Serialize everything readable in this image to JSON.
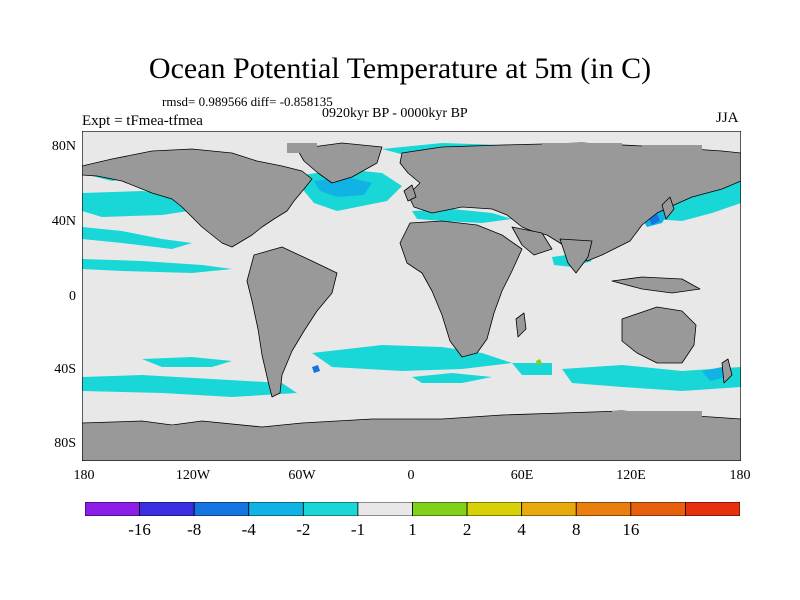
{
  "title": "Ocean Potential Temperature at 5m (in C)",
  "stats_line": "rmsd= 0.989566 diff= -0.858135",
  "period": "0920kyr BP - 0000kyr BP",
  "experiment": "Expt = tFmea-tfmea",
  "season": "JJA",
  "lat_labels": [
    "80N",
    "40N",
    "0",
    "40S",
    "80S"
  ],
  "lon_labels": [
    "180",
    "120W",
    "60W",
    "0",
    "60E",
    "120E",
    "180"
  ],
  "colors": {
    "land": "#999999",
    "ocean_neutral": "#e8e8e8",
    "anomaly_minus1_minus2": "#19d7d7",
    "anomaly_minus2_minus4": "#10b3e3",
    "anomaly_minus4_minus8": "#1475e0"
  },
  "colorbar": {
    "colors": [
      "#8a1ee6",
      "#3a2ee0",
      "#1475e0",
      "#10b3e3",
      "#19d7d7",
      "#e8e8e8",
      "#7fd11a",
      "#d8d10a",
      "#e8a90f",
      "#e87f0e",
      "#e6600e",
      "#e6300e"
    ],
    "labels": [
      "-16",
      "-8",
      "-4",
      "-2",
      "-1",
      "1",
      "2",
      "4",
      "8",
      "16"
    ]
  }
}
